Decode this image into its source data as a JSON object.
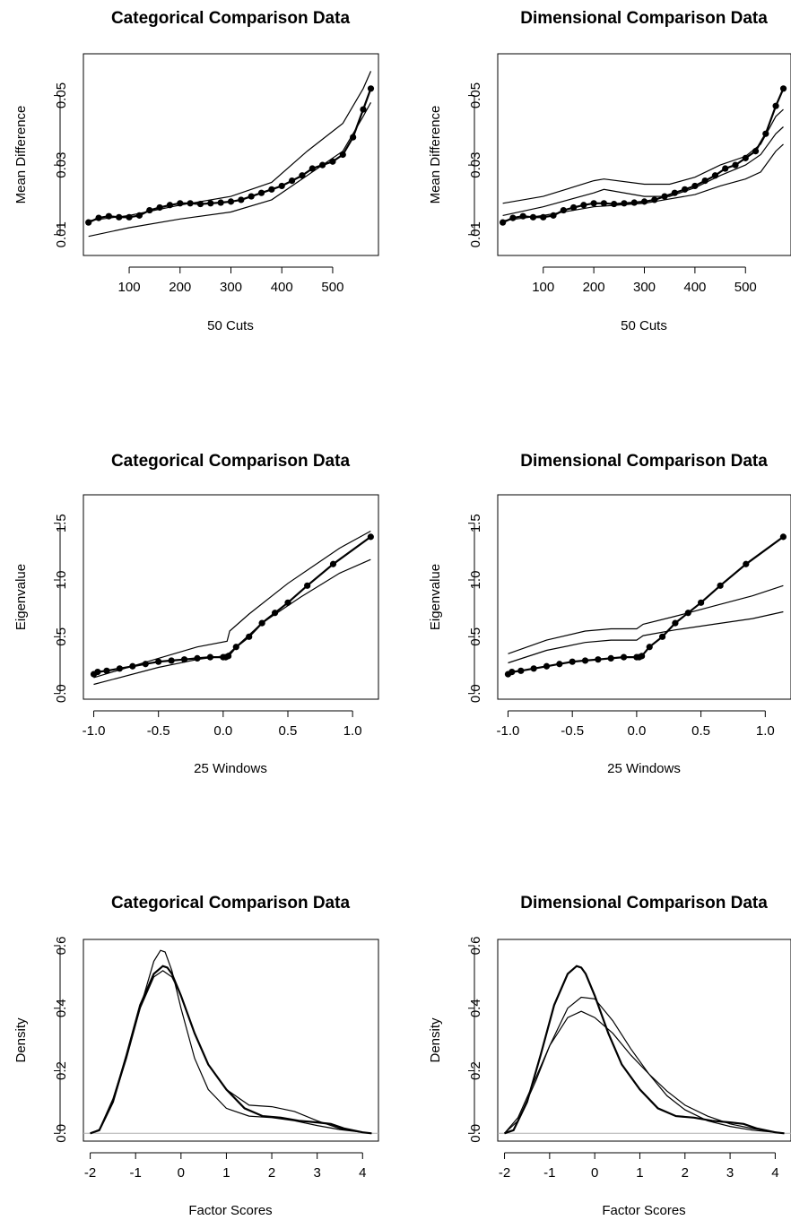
{
  "chart_data": [
    {
      "type": "line",
      "title": "Categorical Comparison Data",
      "xlabel": "50 Cuts",
      "ylabel": "Mean Difference",
      "xlim": [
        10,
        590
      ],
      "ylim": [
        0.004,
        0.062
      ],
      "xticks": [
        100,
        200,
        300,
        400,
        500
      ],
      "yticks": [
        0.01,
        0.03,
        0.05
      ],
      "xticklabels": [
        "100",
        "200",
        "300",
        "400",
        "500"
      ],
      "yticklabels": [
        "0.01",
        "0.03",
        "0.05"
      ],
      "series": [
        {
          "role": "upper",
          "x": [
            20,
            100,
            200,
            300,
            380,
            450,
            520,
            560,
            575
          ],
          "y": [
            0.014,
            0.0155,
            0.0185,
            0.021,
            0.025,
            0.034,
            0.042,
            0.052,
            0.057
          ]
        },
        {
          "role": "lower",
          "x": [
            20,
            100,
            200,
            300,
            380,
            450,
            520,
            560,
            575
          ],
          "y": [
            0.0095,
            0.012,
            0.0145,
            0.0165,
            0.02,
            0.027,
            0.034,
            0.044,
            0.048
          ]
        },
        {
          "role": "observed",
          "x": [
            20,
            40,
            60,
            80,
            100,
            120,
            140,
            160,
            180,
            200,
            220,
            240,
            260,
            280,
            300,
            320,
            340,
            360,
            380,
            400,
            420,
            440,
            460,
            480,
            500,
            520,
            540,
            560,
            575
          ],
          "y": [
            0.0135,
            0.0148,
            0.0153,
            0.015,
            0.015,
            0.0155,
            0.017,
            0.0178,
            0.0185,
            0.019,
            0.019,
            0.0188,
            0.019,
            0.0192,
            0.0195,
            0.02,
            0.021,
            0.022,
            0.023,
            0.024,
            0.0255,
            0.027,
            0.029,
            0.03,
            0.031,
            0.033,
            0.038,
            0.046,
            0.052
          ]
        }
      ]
    },
    {
      "type": "line",
      "title": "Dimensional Comparison Data",
      "xlabel": "50 Cuts",
      "ylabel": "Mean Difference",
      "xlim": [
        10,
        590
      ],
      "ylim": [
        0.004,
        0.062
      ],
      "xticks": [
        100,
        200,
        300,
        400,
        500
      ],
      "yticks": [
        0.01,
        0.03,
        0.05
      ],
      "xticklabels": [
        "100",
        "200",
        "300",
        "400",
        "500"
      ],
      "yticklabels": [
        "0.01",
        "0.03",
        "0.05"
      ],
      "series": [
        {
          "role": "upper",
          "x": [
            20,
            100,
            200,
            220,
            300,
            350,
            400,
            450,
            500,
            530,
            560,
            575
          ],
          "y": [
            0.019,
            0.021,
            0.0255,
            0.026,
            0.0245,
            0.0245,
            0.0265,
            0.03,
            0.0325,
            0.036,
            0.044,
            0.046
          ]
        },
        {
          "role": "middle",
          "x": [
            20,
            100,
            200,
            220,
            300,
            350,
            400,
            450,
            500,
            530,
            560,
            575
          ],
          "y": [
            0.0155,
            0.018,
            0.022,
            0.023,
            0.021,
            0.021,
            0.0235,
            0.027,
            0.03,
            0.033,
            0.039,
            0.041
          ]
        },
        {
          "role": "lower",
          "x": [
            20,
            100,
            200,
            300,
            400,
            450,
            500,
            530,
            560,
            575
          ],
          "y": [
            0.014,
            0.0155,
            0.018,
            0.019,
            0.0215,
            0.024,
            0.026,
            0.028,
            0.034,
            0.036
          ]
        },
        {
          "role": "observed",
          "x": [
            20,
            40,
            60,
            80,
            100,
            120,
            140,
            160,
            180,
            200,
            220,
            240,
            260,
            280,
            300,
            320,
            340,
            360,
            380,
            400,
            420,
            440,
            460,
            480,
            500,
            520,
            540,
            560,
            575
          ],
          "y": [
            0.0135,
            0.0148,
            0.0153,
            0.015,
            0.015,
            0.0155,
            0.017,
            0.0178,
            0.0185,
            0.019,
            0.019,
            0.0188,
            0.019,
            0.0192,
            0.0195,
            0.02,
            0.021,
            0.022,
            0.023,
            0.024,
            0.0255,
            0.027,
            0.029,
            0.03,
            0.032,
            0.034,
            0.039,
            0.047,
            0.052
          ]
        }
      ]
    },
    {
      "type": "line",
      "title": "Categorical Comparison Data",
      "xlabel": "25 Windows",
      "ylabel": "Eigenvalue",
      "xlim": [
        -1.08,
        1.2
      ],
      "ylim": [
        -0.05,
        1.75
      ],
      "xticks": [
        -1.0,
        -0.5,
        0.0,
        0.5,
        1.0
      ],
      "yticks": [
        0.0,
        0.5,
        1.0,
        1.5
      ],
      "xticklabels": [
        "-1.0",
        "-0.5",
        "0.0",
        "0.5",
        "1.0"
      ],
      "yticklabels": [
        "0.0",
        "0.5",
        "1.0",
        "1.5"
      ],
      "series": [
        {
          "role": "upper",
          "x": [
            -1.0,
            -0.5,
            -0.2,
            0.03,
            0.05,
            0.2,
            0.5,
            0.9,
            1.14
          ],
          "y": [
            0.14,
            0.31,
            0.41,
            0.46,
            0.55,
            0.7,
            0.97,
            1.28,
            1.43
          ]
        },
        {
          "role": "lower",
          "x": [
            -1.0,
            -0.5,
            -0.2,
            0.0,
            0.05,
            0.3,
            0.6,
            0.9,
            1.14
          ],
          "y": [
            0.08,
            0.23,
            0.3,
            0.33,
            0.36,
            0.62,
            0.85,
            1.06,
            1.18
          ]
        },
        {
          "role": "observed",
          "x": [
            -1.0,
            -0.97,
            -0.9,
            -0.8,
            -0.7,
            -0.6,
            -0.5,
            -0.4,
            -0.3,
            -0.2,
            -0.1,
            0.0,
            0.02,
            0.04,
            0.1,
            0.2,
            0.3,
            0.4,
            0.5,
            0.65,
            0.85,
            1.14
          ],
          "y": [
            0.17,
            0.19,
            0.2,
            0.22,
            0.24,
            0.26,
            0.28,
            0.29,
            0.3,
            0.31,
            0.32,
            0.32,
            0.32,
            0.33,
            0.41,
            0.5,
            0.62,
            0.71,
            0.8,
            0.95,
            1.14,
            1.38
          ]
        }
      ]
    },
    {
      "type": "line",
      "title": "Dimensional Comparison Data",
      "xlabel": "25 Windows",
      "ylabel": "Eigenvalue",
      "xlim": [
        -1.08,
        1.2
      ],
      "ylim": [
        -0.05,
        1.75
      ],
      "xticks": [
        -1.0,
        -0.5,
        0.0,
        0.5,
        1.0
      ],
      "yticks": [
        0.0,
        0.5,
        1.0,
        1.5
      ],
      "xticklabels": [
        "-1.0",
        "-0.5",
        "0.0",
        "0.5",
        "1.0"
      ],
      "yticklabels": [
        "0.0",
        "0.5",
        "1.0",
        "1.5"
      ],
      "series": [
        {
          "role": "upper",
          "x": [
            -1.0,
            -0.7,
            -0.4,
            -0.2,
            0.0,
            0.05,
            0.3,
            0.6,
            0.9,
            1.14
          ],
          "y": [
            0.35,
            0.47,
            0.55,
            0.57,
            0.57,
            0.61,
            0.68,
            0.77,
            0.86,
            0.95
          ]
        },
        {
          "role": "lower",
          "x": [
            -1.0,
            -0.7,
            -0.4,
            -0.2,
            0.0,
            0.05,
            0.3,
            0.6,
            0.9,
            1.14
          ],
          "y": [
            0.27,
            0.38,
            0.45,
            0.47,
            0.47,
            0.51,
            0.56,
            0.61,
            0.66,
            0.72
          ]
        },
        {
          "role": "observed",
          "x": [
            -1.0,
            -0.97,
            -0.9,
            -0.8,
            -0.7,
            -0.6,
            -0.5,
            -0.4,
            -0.3,
            -0.2,
            -0.1,
            0.0,
            0.02,
            0.04,
            0.1,
            0.2,
            0.3,
            0.4,
            0.5,
            0.65,
            0.85,
            1.14
          ],
          "y": [
            0.17,
            0.19,
            0.2,
            0.22,
            0.24,
            0.26,
            0.28,
            0.29,
            0.3,
            0.31,
            0.32,
            0.32,
            0.32,
            0.33,
            0.41,
            0.5,
            0.62,
            0.71,
            0.8,
            0.95,
            1.14,
            1.38
          ]
        }
      ]
    },
    {
      "type": "line",
      "title": "Categorical Comparison Data",
      "xlabel": "Factor Scores",
      "ylabel": "Density",
      "xlim": [
        -2.15,
        4.35
      ],
      "ylim": [
        -0.025,
        0.62
      ],
      "xticks": [
        -2,
        -1,
        0,
        1,
        2,
        3,
        4
      ],
      "yticks": [
        0.0,
        0.2,
        0.4,
        0.6
      ],
      "xticklabels": [
        "-2",
        "-1",
        "0",
        "1",
        "2",
        "3",
        "4"
      ],
      "yticklabels": [
        "0.0",
        "0.2",
        "0.4",
        "0.6"
      ],
      "series": [
        {
          "role": "comparison",
          "x": [
            -2.0,
            -1.8,
            -1.5,
            -1.2,
            -0.9,
            -0.6,
            -0.45,
            -0.35,
            -0.2,
            0.0,
            0.3,
            0.6,
            1.0,
            1.5,
            2.0,
            2.5,
            3.0,
            3.5,
            4.0,
            4.2
          ],
          "y": [
            0.0,
            0.01,
            0.1,
            0.24,
            0.4,
            0.55,
            0.585,
            0.58,
            0.52,
            0.4,
            0.24,
            0.14,
            0.08,
            0.055,
            0.05,
            0.04,
            0.025,
            0.012,
            0.003,
            0.0
          ]
        },
        {
          "role": "comparison",
          "x": [
            -2.0,
            -1.8,
            -1.5,
            -1.2,
            -0.9,
            -0.6,
            -0.4,
            -0.2,
            0.0,
            0.3,
            0.6,
            1.0,
            1.5,
            2.0,
            2.5,
            3.0,
            3.5,
            4.0,
            4.2
          ],
          "y": [
            0.0,
            0.012,
            0.11,
            0.25,
            0.4,
            0.5,
            0.52,
            0.5,
            0.44,
            0.32,
            0.22,
            0.14,
            0.09,
            0.085,
            0.07,
            0.04,
            0.015,
            0.003,
            0.0
          ]
        },
        {
          "role": "observed",
          "x": [
            -2.0,
            -1.8,
            -1.5,
            -1.2,
            -0.9,
            -0.6,
            -0.4,
            -0.3,
            -0.2,
            0.0,
            0.3,
            0.6,
            1.0,
            1.4,
            1.8,
            2.2,
            2.6,
            3.0,
            3.3,
            3.6,
            4.0,
            4.2
          ],
          "y": [
            0.0,
            0.01,
            0.1,
            0.25,
            0.41,
            0.51,
            0.535,
            0.53,
            0.51,
            0.44,
            0.32,
            0.22,
            0.14,
            0.08,
            0.055,
            0.05,
            0.04,
            0.035,
            0.03,
            0.015,
            0.003,
            0.0
          ]
        }
      ]
    },
    {
      "type": "line",
      "title": "Dimensional Comparison Data",
      "xlabel": "Factor Scores",
      "ylabel": "Density",
      "xlim": [
        -2.15,
        4.35
      ],
      "ylim": [
        -0.025,
        0.62
      ],
      "xticks": [
        -2,
        -1,
        0,
        1,
        2,
        3,
        4
      ],
      "yticks": [
        0.0,
        0.2,
        0.4,
        0.6
      ],
      "xticklabels": [
        "-2",
        "-1",
        "0",
        "1",
        "2",
        "3",
        "4"
      ],
      "yticklabels": [
        "0.0",
        "0.2",
        "0.4",
        "0.6"
      ],
      "series": [
        {
          "role": "comparison",
          "x": [
            -2.0,
            -1.7,
            -1.3,
            -1.0,
            -0.6,
            -0.3,
            0.0,
            0.4,
            0.8,
            1.2,
            1.6,
            2.0,
            2.5,
            3.0,
            3.5,
            4.0,
            4.2
          ],
          "y": [
            0.0,
            0.04,
            0.17,
            0.28,
            0.4,
            0.435,
            0.43,
            0.36,
            0.27,
            0.19,
            0.12,
            0.075,
            0.04,
            0.022,
            0.01,
            0.003,
            0.0
          ]
        },
        {
          "role": "comparison",
          "x": [
            -2.0,
            -1.7,
            -1.3,
            -1.0,
            -0.6,
            -0.3,
            0.0,
            0.4,
            0.8,
            1.2,
            1.6,
            2.0,
            2.5,
            3.0,
            3.5,
            4.0,
            4.2
          ],
          "y": [
            0.0,
            0.05,
            0.18,
            0.28,
            0.37,
            0.39,
            0.37,
            0.32,
            0.25,
            0.19,
            0.135,
            0.09,
            0.055,
            0.03,
            0.015,
            0.004,
            0.0
          ]
        },
        {
          "role": "observed",
          "x": [
            -2.0,
            -1.8,
            -1.5,
            -1.2,
            -0.9,
            -0.6,
            -0.4,
            -0.3,
            -0.2,
            0.0,
            0.3,
            0.6,
            1.0,
            1.4,
            1.8,
            2.2,
            2.6,
            3.0,
            3.3,
            3.6,
            4.0,
            4.2
          ],
          "y": [
            0.0,
            0.01,
            0.1,
            0.25,
            0.41,
            0.51,
            0.535,
            0.53,
            0.51,
            0.44,
            0.32,
            0.22,
            0.14,
            0.08,
            0.055,
            0.05,
            0.04,
            0.035,
            0.03,
            0.015,
            0.003,
            0.0
          ]
        }
      ]
    }
  ]
}
